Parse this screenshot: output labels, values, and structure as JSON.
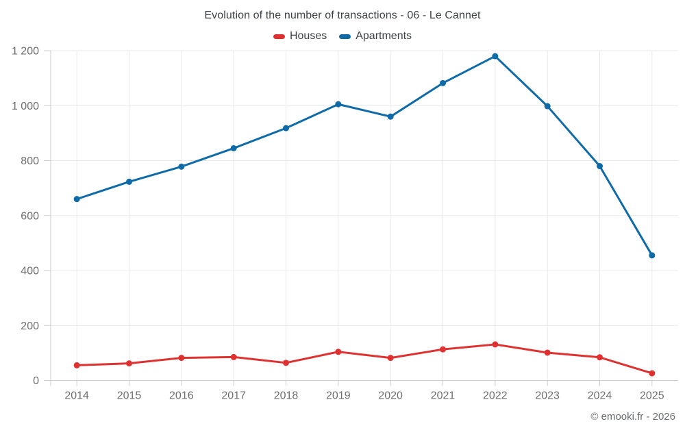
{
  "header": {
    "title": "Evolution of the number of transactions - 06 - Le Cannet"
  },
  "footer": {
    "credit": "© emooki.fr - 2026"
  },
  "chart_data": {
    "type": "line",
    "title": "Evolution of the number of transactions - 06 - Le Cannet",
    "xlabel": "",
    "ylabel": "",
    "categories": [
      "2014",
      "2015",
      "2016",
      "2017",
      "2018",
      "2019",
      "2020",
      "2021",
      "2022",
      "2023",
      "2024",
      "2025"
    ],
    "series": [
      {
        "name": "Houses",
        "color": "#e03131",
        "values": [
          55,
          62,
          82,
          85,
          64,
          104,
          82,
          113,
          131,
          101,
          84,
          26
        ]
      },
      {
        "name": "Apartments",
        "color": "#0e6ba8",
        "values": [
          660,
          723,
          778,
          845,
          918,
          1005,
          960,
          1082,
          1180,
          998,
          780,
          455
        ]
      }
    ],
    "ylim": [
      0,
      1200
    ],
    "y_ticks": [
      0,
      200,
      400,
      600,
      800,
      1000,
      1200
    ],
    "y_tick_labels": [
      "0",
      "200",
      "400",
      "600",
      "800",
      "1 000",
      "1 200"
    ],
    "grid": true,
    "legend_position": "top",
    "colors": {
      "grid": "#e9e9e9",
      "axis": "#cccccc",
      "tick_label": "#6e6e6e",
      "title": "#3d4247",
      "footer": "#6a6e71",
      "background": "#ffffff"
    }
  }
}
